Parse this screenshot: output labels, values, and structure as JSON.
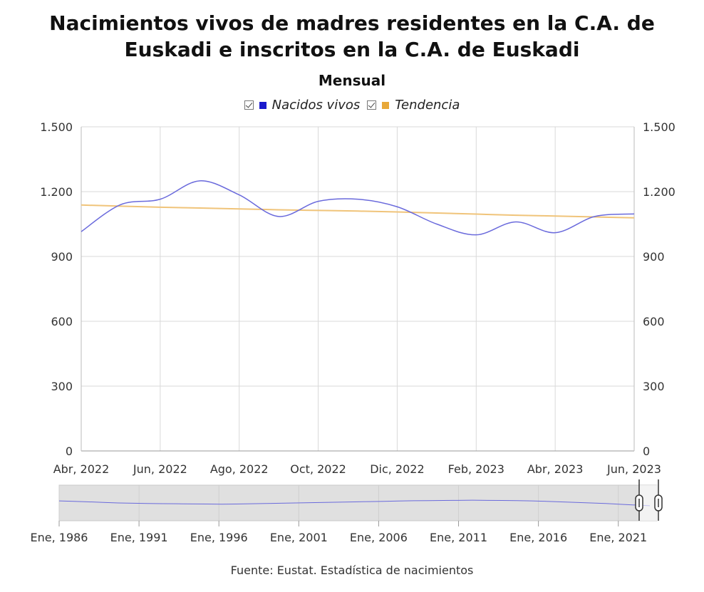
{
  "title_line1": "Nacimientos vivos de madres residentes en la C.A. de",
  "title_line2": "Euskadi e inscritos en la C.A. de Euskadi",
  "subtitle": "Mensual",
  "legend": [
    {
      "label": "Nacidos vivos",
      "color": "#1a1acc"
    },
    {
      "label": "Tendencia",
      "color": "#e8a838"
    }
  ],
  "source": "Fuente: Eustat. Estadística de nacimientos",
  "colors": {
    "series_line": "#6a6adc",
    "trend_line": "#f0c47a",
    "grid": "#d9d9d9",
    "navigator_fill": "#e0e0e0"
  },
  "chart_data": {
    "type": "line",
    "ylim": [
      0,
      1500
    ],
    "yticks": [
      0,
      300,
      600,
      900,
      1200,
      1500
    ],
    "ytick_labels": [
      "0",
      "300",
      "600",
      "900",
      "1.200",
      "1.500"
    ],
    "x_tick_labels": [
      "Abr, 2022",
      "Jun, 2022",
      "Ago, 2022",
      "Oct, 2022",
      "Dic, 2022",
      "Feb, 2023",
      "Abr, 2023",
      "Jun, 2023"
    ],
    "x": [
      "Abr, 2022",
      "May, 2022",
      "Jun, 2022",
      "Jul, 2022",
      "Ago, 2022",
      "Sep, 2022",
      "Oct, 2022",
      "Nov, 2022",
      "Dic, 2022",
      "Ene, 2023",
      "Feb, 2023",
      "Mar, 2023",
      "Abr, 2023",
      "May, 2023",
      "Jun, 2023"
    ],
    "series": [
      {
        "name": "Nacidos vivos",
        "values": [
          1015,
          1140,
          1165,
          1250,
          1185,
          1085,
          1155,
          1165,
          1130,
          1050,
          1000,
          1060,
          1010,
          1085,
          1097
        ]
      },
      {
        "name": "Tendencia",
        "values": [
          1138,
          1133,
          1128,
          1124,
          1120,
          1116,
          1113,
          1110,
          1106,
          1101,
          1096,
          1091,
          1087,
          1083,
          1079
        ]
      }
    ],
    "grid": true,
    "legend_position": "top-center",
    "navigator": {
      "tick_labels": [
        "Ene, 1986",
        "Ene, 1991",
        "Ene, 1996",
        "Ene, 2001",
        "Ene, 2006",
        "Ene, 2011",
        "Ene, 2016",
        "Ene, 2021"
      ],
      "ylim": [
        0,
        2600
      ],
      "series_values": [
        1450,
        1420,
        1380,
        1340,
        1300,
        1280,
        1260,
        1250,
        1240,
        1230,
        1220,
        1210,
        1220,
        1240,
        1260,
        1280,
        1300,
        1320,
        1340,
        1360,
        1380,
        1400,
        1420,
        1440,
        1460,
        1470,
        1480,
        1490,
        1500,
        1490,
        1480,
        1470,
        1450,
        1420,
        1380,
        1340,
        1300,
        1260,
        1200,
        1150,
        1100
      ]
    }
  }
}
